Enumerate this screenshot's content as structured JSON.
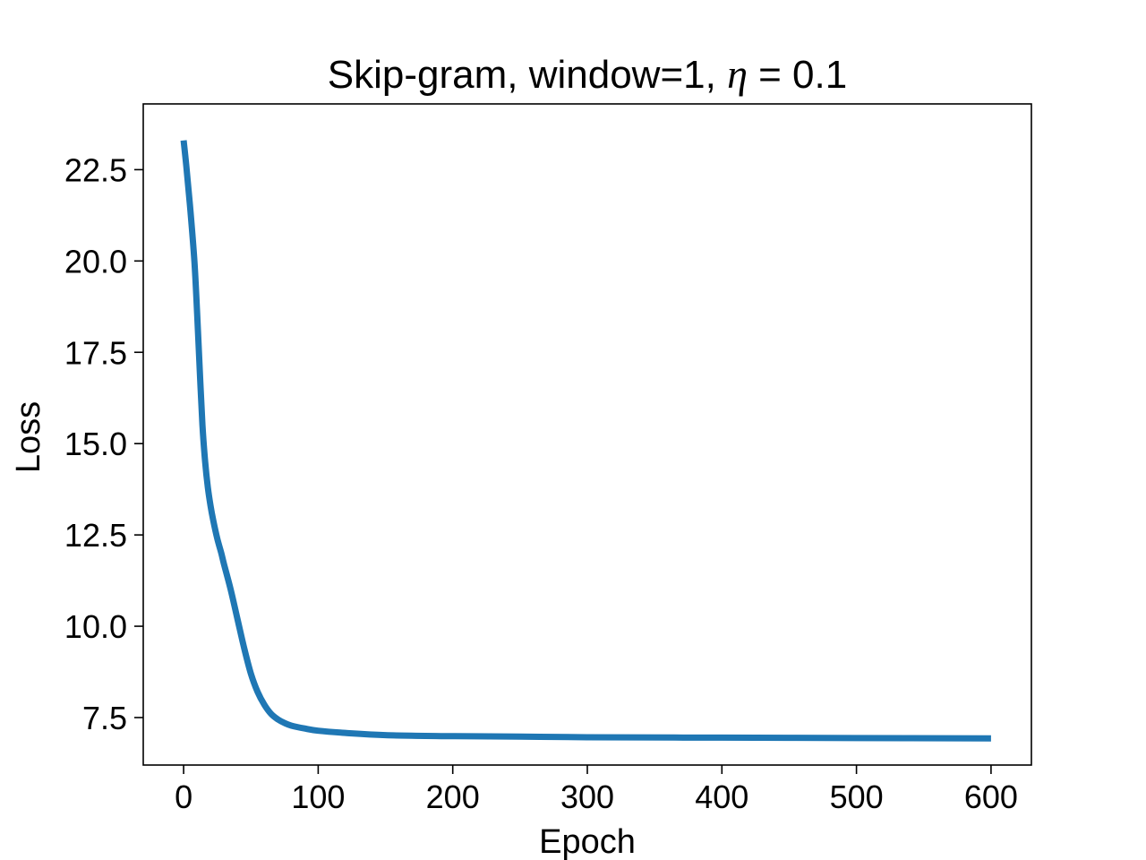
{
  "chart_data": {
    "type": "line",
    "title": {
      "prefix": "Skip-gram, window=1, ",
      "symbol": "η",
      "suffix": " = 0.1"
    },
    "xlabel": "Epoch",
    "ylabel": "Loss",
    "xlim": [
      -30,
      630
    ],
    "ylim": [
      6.2,
      24.3
    ],
    "x_ticks": [
      0,
      100,
      200,
      300,
      400,
      500,
      600
    ],
    "x_tick_labels": [
      "0",
      "100",
      "200",
      "300",
      "400",
      "500",
      "600"
    ],
    "y_ticks": [
      7.5,
      10.0,
      12.5,
      15.0,
      17.5,
      20.0,
      22.5
    ],
    "y_tick_labels": [
      "7.5",
      "10.0",
      "12.5",
      "15.0",
      "17.5",
      "20.0",
      "22.5"
    ],
    "grid": false,
    "legend": "none",
    "series": [
      {
        "color": "#1f77b4",
        "x": [
          0,
          2,
          5,
          8,
          10,
          12,
          14,
          16,
          18,
          20,
          22,
          25,
          28,
          30,
          35,
          40,
          45,
          50,
          55,
          60,
          65,
          70,
          75,
          80,
          90,
          100,
          120,
          150,
          200,
          250,
          300,
          400,
          500,
          600
        ],
        "y": [
          23.3,
          22.6,
          21.4,
          20.0,
          18.6,
          17.0,
          15.5,
          14.5,
          13.8,
          13.3,
          12.9,
          12.4,
          12.0,
          11.7,
          11.0,
          10.2,
          9.4,
          8.7,
          8.2,
          7.85,
          7.6,
          7.45,
          7.35,
          7.28,
          7.2,
          7.14,
          7.08,
          7.02,
          6.99,
          6.98,
          6.96,
          6.95,
          6.94,
          6.93
        ]
      }
    ]
  }
}
